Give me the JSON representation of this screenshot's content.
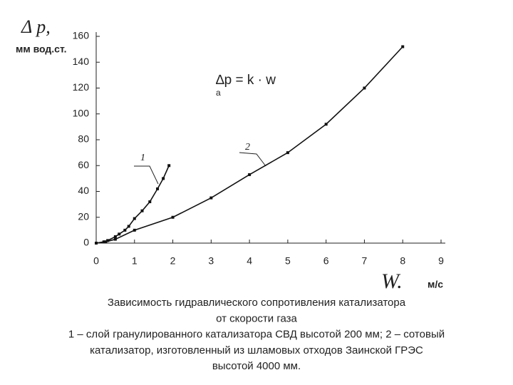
{
  "chart_data": {
    "type": "line",
    "y_label": "Δ р,",
    "y_unit": "мм вод.ст.",
    "x_label": "W.",
    "x_unit": "м/с",
    "formula": "∆p = k · w",
    "formula_sub": "a",
    "xlim": [
      0,
      9
    ],
    "xticks": [
      0,
      1,
      2,
      3,
      4,
      5,
      6,
      7,
      8,
      9
    ],
    "ylim": [
      0,
      160
    ],
    "yticks": [
      0,
      20,
      40,
      60,
      80,
      100,
      120,
      140,
      160
    ],
    "series": [
      {
        "name": "1",
        "color": "#111111",
        "x": [
          0,
          0.2,
          0.3,
          0.5,
          0.6,
          0.75,
          0.85,
          1,
          1.2,
          1.4,
          1.6,
          1.75,
          1.9
        ],
        "values": [
          0,
          1,
          2,
          5,
          7,
          10,
          13,
          19,
          25,
          32,
          42,
          50,
          60
        ]
      },
      {
        "name": "2",
        "color": "#111111",
        "x": [
          0,
          0.25,
          0.5,
          1,
          2,
          3,
          4,
          5,
          6,
          7,
          8
        ],
        "values": [
          0,
          1,
          3,
          10,
          20,
          35,
          53,
          70,
          92,
          120,
          152
        ]
      }
    ],
    "caption": [
      "Зависимость гидравлического сопротивления катализатора",
      "от скорости газа",
      "1 – слой гранулированного катализатора СВД высотой 200 мм; 2 – сотовый",
      "катализатор, изготовленный из шламовых отходов Заинской ГРЭС",
      "высотой 4000 мм."
    ]
  }
}
